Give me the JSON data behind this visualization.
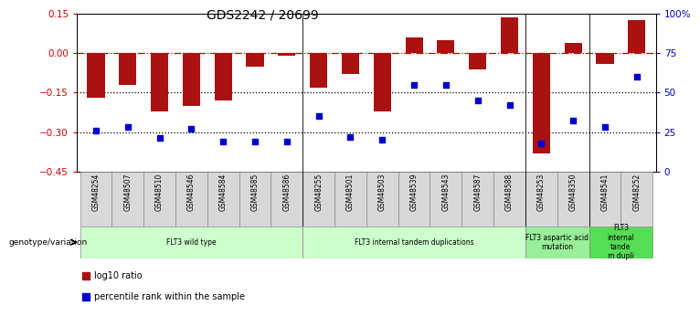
{
  "title": "GDS2242 / 20699",
  "samples": [
    "GSM48254",
    "GSM48507",
    "GSM48510",
    "GSM48546",
    "GSM48584",
    "GSM48585",
    "GSM48586",
    "GSM48255",
    "GSM48501",
    "GSM48503",
    "GSM48539",
    "GSM48543",
    "GSM48587",
    "GSM48588",
    "GSM48253",
    "GSM48350",
    "GSM48541",
    "GSM48252"
  ],
  "log10_ratio": [
    -0.17,
    -0.12,
    -0.22,
    -0.2,
    -0.18,
    -0.05,
    -0.01,
    -0.13,
    -0.08,
    -0.22,
    0.06,
    0.05,
    -0.06,
    0.135,
    -0.38,
    0.04,
    -0.04,
    0.125
  ],
  "percentile_rank": [
    26,
    28,
    21,
    27,
    19,
    19,
    19,
    35,
    22,
    20,
    55,
    55,
    45,
    42,
    18,
    32,
    28,
    60
  ],
  "ylim_left": [
    -0.45,
    0.15
  ],
  "ylim_right": [
    0,
    100
  ],
  "yticks_left": [
    0.15,
    0.0,
    -0.15,
    -0.3,
    -0.45
  ],
  "yticks_right": [
    100,
    75,
    50,
    25,
    0
  ],
  "ytick_right_labels": [
    "100%",
    "75",
    "50",
    "25",
    "0"
  ],
  "bar_color": "#aa1111",
  "dot_color": "#0000cc",
  "hline_0_color": "#cc0000",
  "hline_dotted_color": "#000000",
  "groups": [
    {
      "label": "FLT3 wild type",
      "start": 0,
      "end": 6,
      "color": "#ccffcc"
    },
    {
      "label": "FLT3 internal tandem duplications",
      "start": 7,
      "end": 13,
      "color": "#ccffcc"
    },
    {
      "label": "FLT3 aspartic acid\nmutation",
      "start": 14,
      "end": 15,
      "color": "#99ee99"
    },
    {
      "label": "FLT3\ninternal\ntande\nm dupli",
      "start": 16,
      "end": 17,
      "color": "#55dd55"
    }
  ],
  "ylabel_left_color": "#cc0000",
  "ylabel_right_color": "#0000cc",
  "bg_color": "#ffffff"
}
